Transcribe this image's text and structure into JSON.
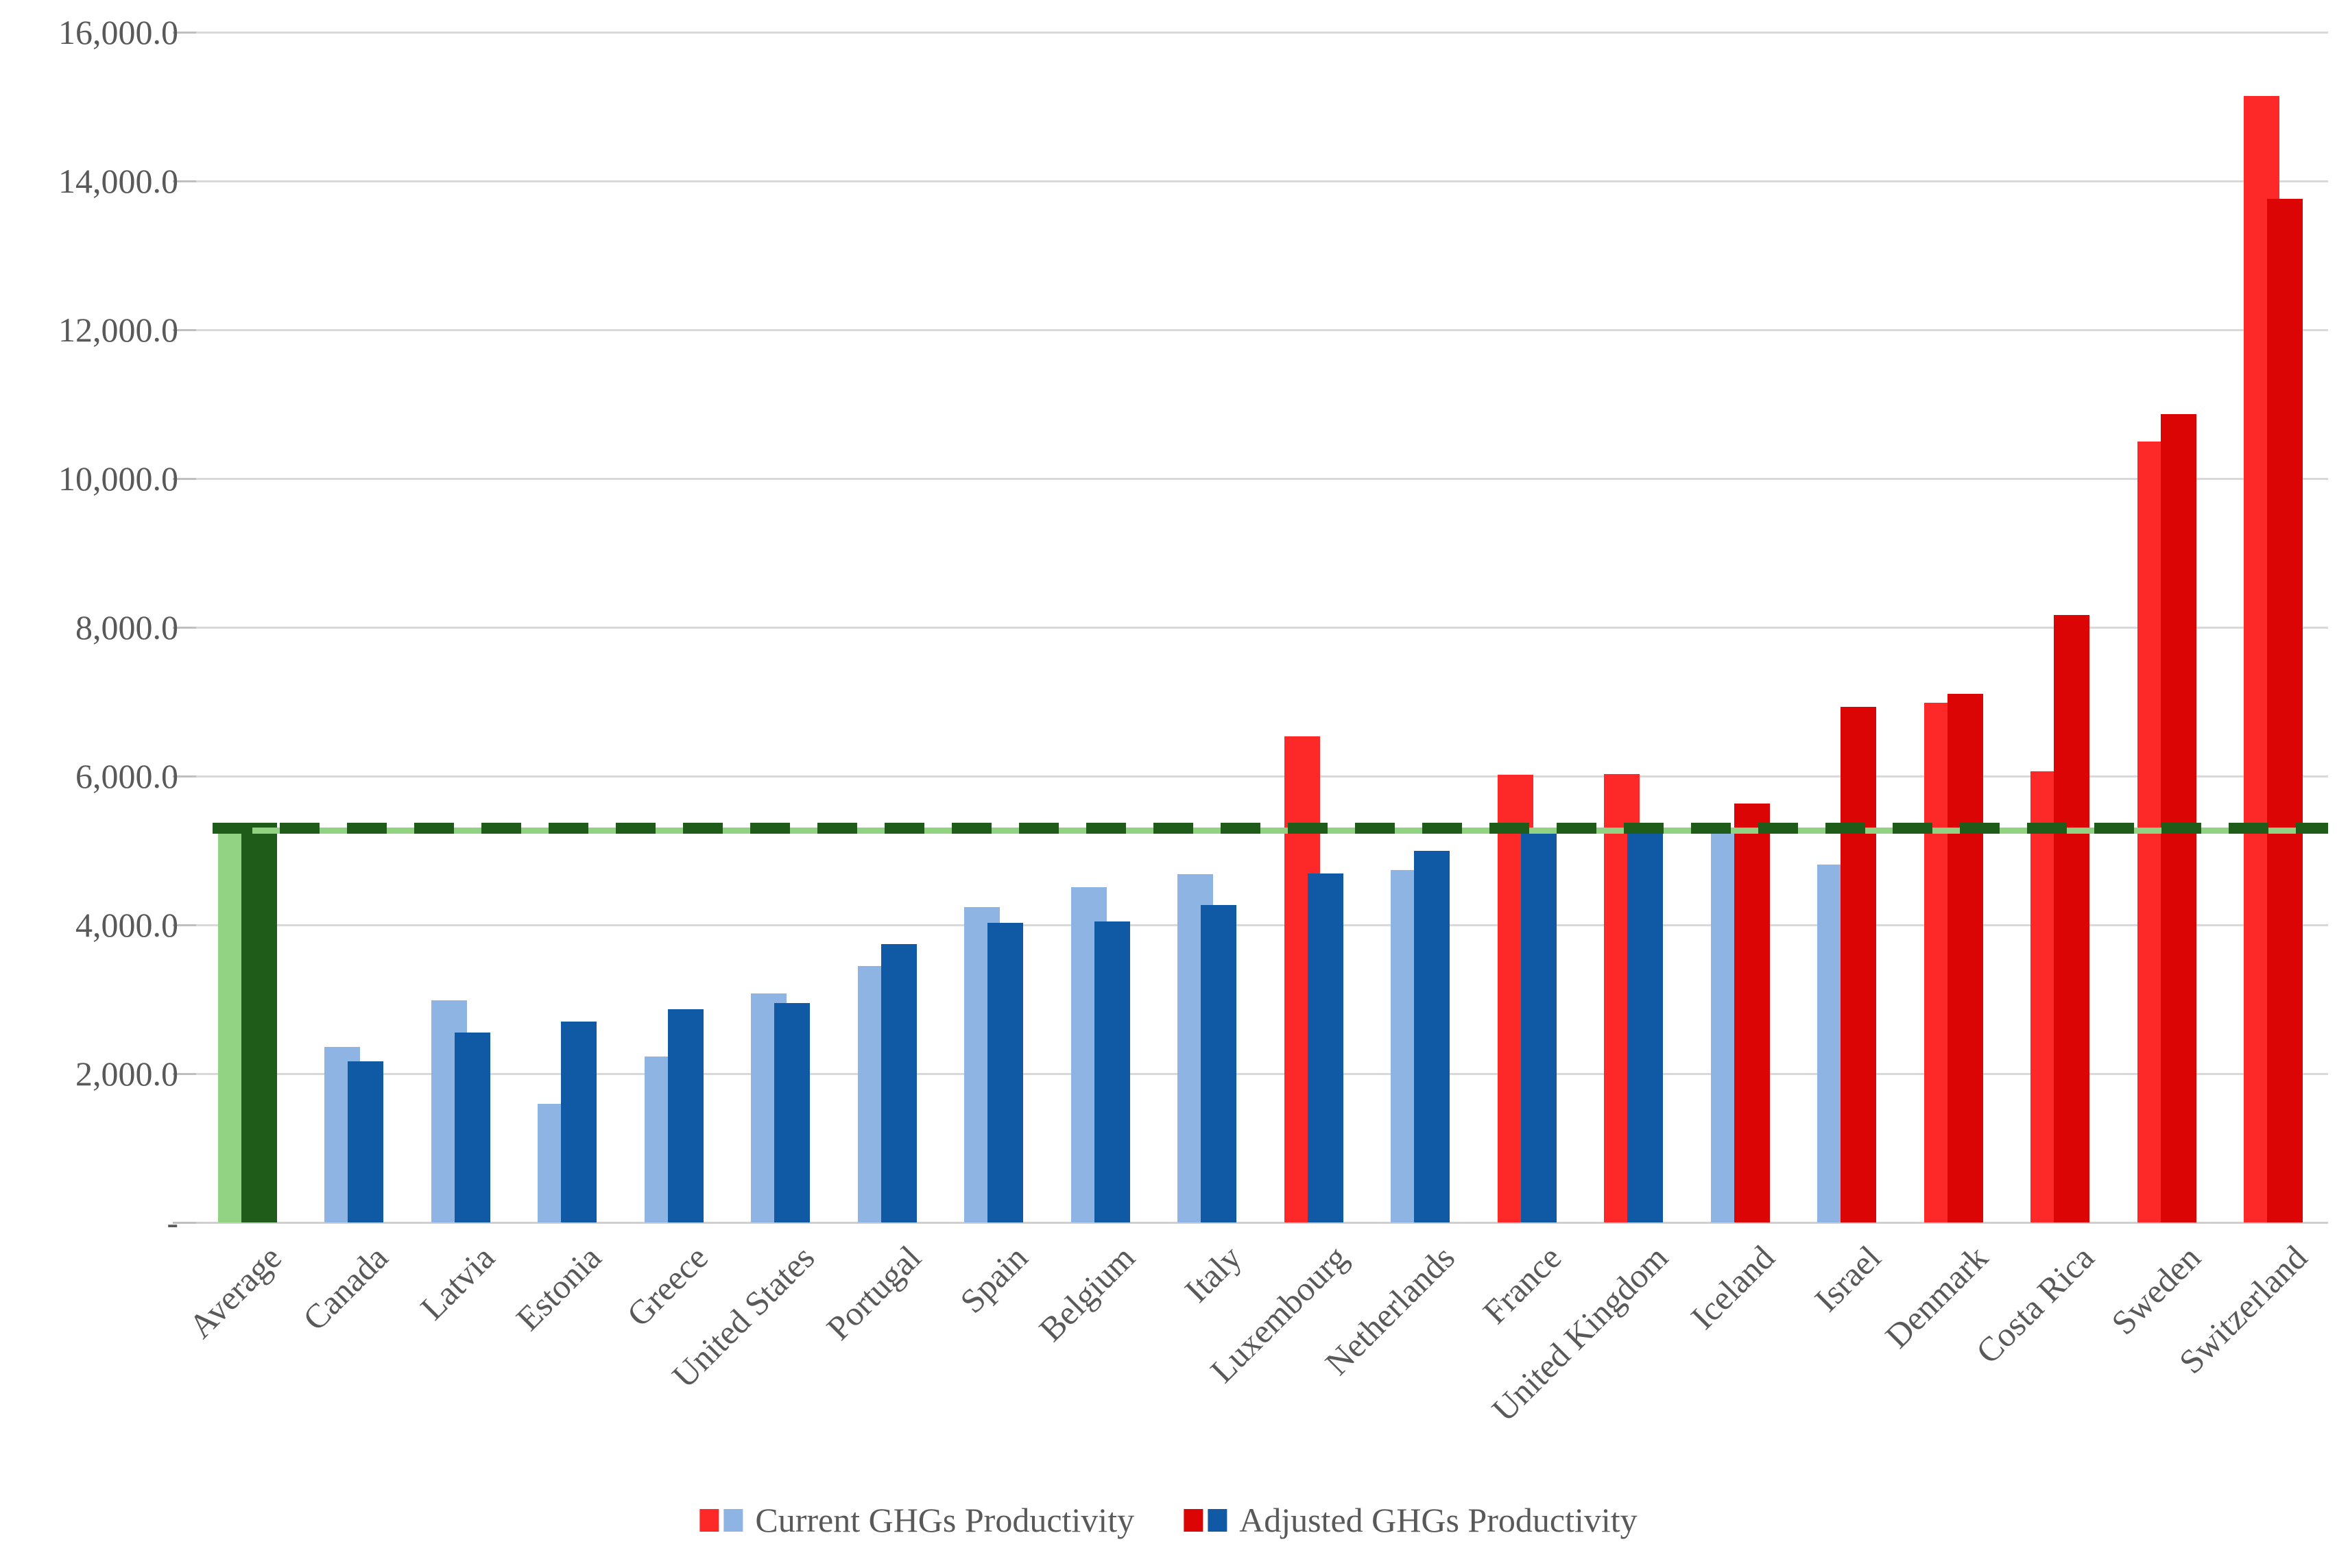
{
  "chart_data": {
    "type": "bar",
    "title": "",
    "y_axis": {
      "min": 0,
      "max": 16000,
      "step": 2000,
      "tick_labels": [
        "-",
        "2,000.0",
        "4,000.0",
        "6,000.0",
        "8,000.0",
        "10,000.0",
        "12,000.0",
        "14,000.0",
        "16,000.0"
      ]
    },
    "grid": "horizontal",
    "categories": [
      "Average",
      "Canada",
      "Latvia",
      "Estonia",
      "Greece",
      "United States",
      "Portugal",
      "Spain",
      "Belgium",
      "Italy",
      "Luxembourg",
      "Netherlands",
      "France",
      "United Kingdom",
      "Iceland",
      "Israel",
      "Denmark",
      "Costa Rica",
      "Sweden",
      "Switzerland"
    ],
    "series": [
      {
        "name": "Current GHGs Productivity",
        "values": [
          5310,
          2360,
          2990,
          1590,
          2230,
          3080,
          3450,
          4240,
          4510,
          4680,
          6530,
          4740,
          6020,
          6030,
          5250,
          4810,
          6990,
          6060,
          10500,
          15140
        ],
        "bar_colors": [
          "light_green",
          "light_blue",
          "light_blue",
          "light_blue",
          "light_blue",
          "light_blue",
          "light_blue",
          "light_blue",
          "light_blue",
          "light_blue",
          "red",
          "light_blue",
          "red",
          "red",
          "light_blue",
          "light_blue",
          "red",
          "red",
          "red",
          "red"
        ]
      },
      {
        "name": "Adjusted GHGs Productivity",
        "values": [
          5370,
          2170,
          2550,
          2700,
          2870,
          2950,
          3740,
          4030,
          4050,
          4270,
          4690,
          5000,
          5230,
          5290,
          5630,
          6930,
          7110,
          8170,
          10870,
          13760
        ],
        "bar_colors": [
          "dark_green",
          "dark_blue",
          "dark_blue",
          "dark_blue",
          "dark_blue",
          "dark_blue",
          "dark_blue",
          "dark_blue",
          "dark_blue",
          "dark_blue",
          "dark_blue",
          "dark_blue",
          "dark_blue",
          "dark_blue",
          "dark_red",
          "dark_red",
          "dark_red",
          "dark_red",
          "dark_red",
          "dark_red"
        ]
      }
    ],
    "reference_line": {
      "value": 5300,
      "style": "dashed",
      "dash_color": "dark_green",
      "underlay_color": "light_green"
    },
    "legend": [
      {
        "label": "Current GHGs Productivity",
        "swatches": [
          "red",
          "light_blue"
        ]
      },
      {
        "label": "Adjusted GHGs Productivity",
        "swatches": [
          "dark_red",
          "dark_blue"
        ]
      }
    ],
    "palette": {
      "red": "#fd2929",
      "dark_red": "#dc0505",
      "light_blue": "#8db4e2",
      "dark_blue": "#1059a4",
      "light_green": "#92d283",
      "dark_green": "#1f5b19",
      "gridline": "#d9d9d9",
      "axis_text": "#595959"
    },
    "legend_position": "bottom-center"
  }
}
